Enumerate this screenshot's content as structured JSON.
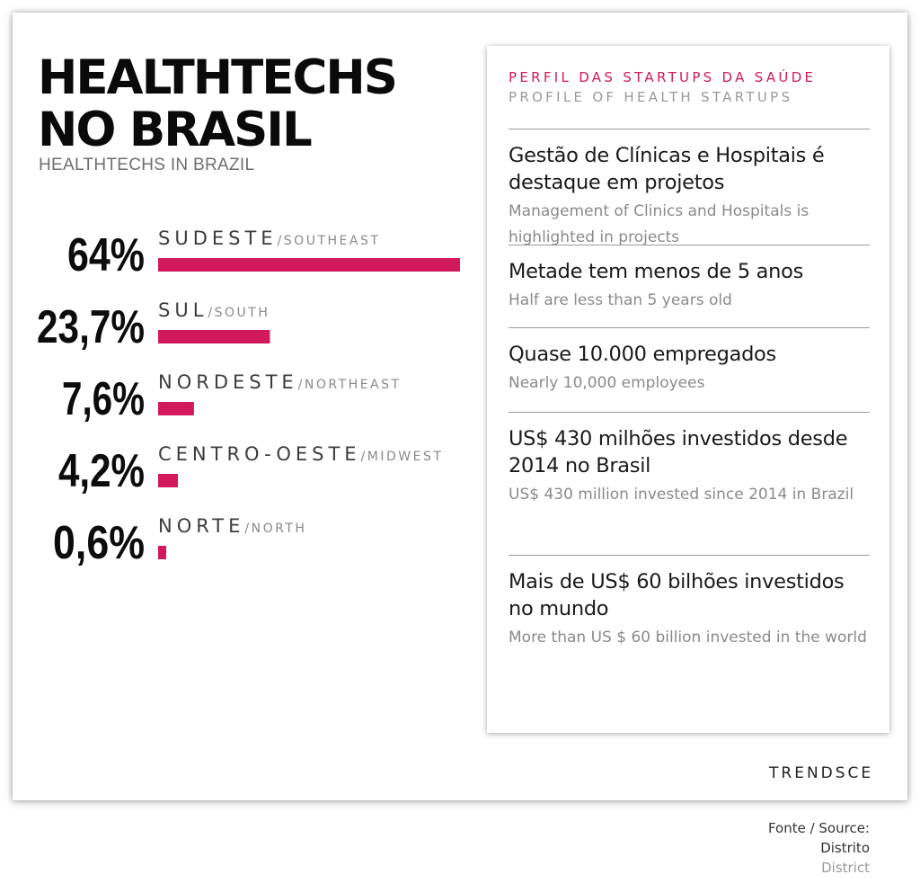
{
  "title_lines": [
    "HEALTHTECHS",
    "NO BRASIL"
  ],
  "subtitle": "HEALTHTECHS IN BRAZIL",
  "chart_data": {
    "type": "bar",
    "orientation": "horizontal",
    "categories": [
      "SUDESTE",
      "SUL",
      "NORDESTE",
      "CENTRO-OESTE",
      "NORTE"
    ],
    "categories_en": [
      "SOUTHEAST",
      "SOUTH",
      "NORTHEAST",
      "MIDWEST",
      "NORTH"
    ],
    "values": [
      64,
      23.7,
      7.6,
      4.2,
      0.6
    ],
    "value_labels": [
      "64%",
      "23,7%",
      "7,6%",
      "4,2%",
      "0,6%"
    ],
    "bar_color": "#d1195b",
    "separator": "/",
    "grid": false
  },
  "panel": {
    "heading_pt": "PERFIL DAS STARTUPS DA SAÚDE",
    "heading_en": "PROFILE OF HEALTH STARTUPS",
    "items": [
      {
        "pt": "Gestão de Clínicas e Hospitais é destaque em projetos",
        "en": "Management of Clinics and Hospitals is highlighted in projects"
      },
      {
        "pt": "Metade tem menos de 5 anos",
        "en": "Half are less than 5 years old"
      },
      {
        "pt": "Quase 10.000 empregados",
        "en": "Nearly 10,000 employees"
      },
      {
        "pt": "US$ 430 milhões investidos desde 2014 no Brasil",
        "en": "US$ 430 million invested since 2014 in Brazil"
      },
      {
        "pt": "Mais de US$ 60 bilhões investidos no mundo",
        "en": "More than US $ 60 billion invested in the world"
      }
    ]
  },
  "brand": "TRENDSCE",
  "source": {
    "line1": "Fonte / Source:",
    "line2": "Distrito",
    "line3": "District"
  },
  "colors": {
    "accent": "#d1195b",
    "text": "#111111",
    "muted": "#8a8a8a"
  }
}
